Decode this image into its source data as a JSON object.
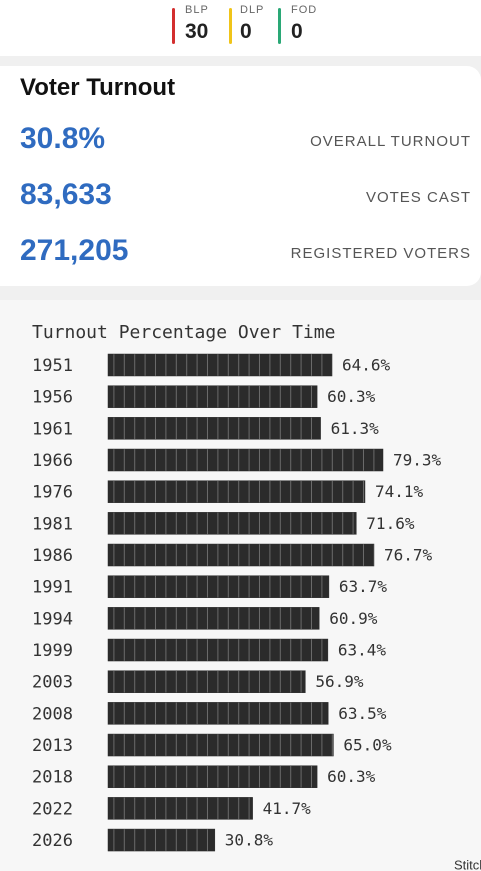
{
  "header": {
    "parties": [
      {
        "name": "BLP",
        "seats": 30,
        "color": "#d32f2f"
      },
      {
        "name": "DLP",
        "seats": 0,
        "color": "#f0c419"
      },
      {
        "name": "FOD",
        "seats": 0,
        "color": "#2aa876"
      }
    ]
  },
  "turnout": {
    "title": "Voter Turnout",
    "stats": [
      {
        "value": "30.8%",
        "label": "OVERALL TURNOUT"
      },
      {
        "value": "83,633",
        "label": "VOTES CAST"
      },
      {
        "value": "271,205",
        "label": "REGISTERED VOTERS"
      }
    ]
  },
  "chart_data": {
    "type": "bar",
    "orientation": "horizontal",
    "title": "Turnout Percentage Over Time",
    "categories": [
      "1951",
      "1956",
      "1961",
      "1966",
      "1976",
      "1981",
      "1986",
      "1991",
      "1994",
      "1999",
      "2003",
      "2008",
      "2013",
      "2018",
      "2022",
      "2026"
    ],
    "values": [
      64.6,
      60.3,
      61.3,
      79.3,
      74.1,
      71.6,
      76.7,
      63.7,
      60.9,
      63.4,
      56.9,
      63.5,
      65.0,
      60.3,
      41.7,
      30.8
    ],
    "value_labels": [
      "64.6%",
      "60.3%",
      "61.3%",
      "79.3%",
      "74.1%",
      "71.6%",
      "76.7%",
      "63.7%",
      "60.9%",
      "63.4%",
      "56.9%",
      "63.5%",
      "65.0%",
      "60.3%",
      "41.7%",
      "30.8%"
    ],
    "color": "#2b2b2b"
  },
  "footer": {
    "watermark": "Stitch"
  }
}
